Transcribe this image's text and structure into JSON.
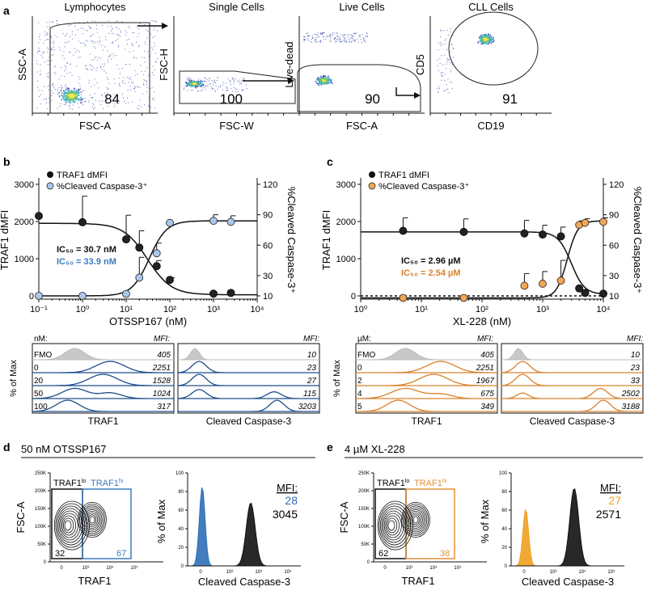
{
  "colors": {
    "blue": "#1f4e8c",
    "lightblue": "#a9c8ea",
    "bluetext": "#3b7bbf",
    "orange": "#d9822b",
    "lightorange": "#f2a555",
    "black": "#111111",
    "gray": "#bbbbbb"
  },
  "panel_a": {
    "letter": "a",
    "plots": [
      {
        "title": "Lymphocytes",
        "xlabel": "FSC-A",
        "ylabel": "SSC-A",
        "pct": "84"
      },
      {
        "title": "Single Cells",
        "xlabel": "FSC-W",
        "ylabel": "FSC-H",
        "pct": "100"
      },
      {
        "title": "Live Cells",
        "xlabel": "FSC-A",
        "ylabel": "Live-dead",
        "pct": "90"
      },
      {
        "title": "CLL Cells",
        "xlabel": "CD19",
        "ylabel": "CD5",
        "pct": "91"
      }
    ]
  },
  "chart_data": [
    {
      "panel": "b",
      "type": "line",
      "xlabel": "OTSSP167 (nM)",
      "ylabel": "TRAF1 dMFI",
      "y2label": "%Cleaved Caspase-3⁺",
      "xscale": "log",
      "xlim": [
        0.1,
        10000
      ],
      "ylim": [
        0,
        3000
      ],
      "y2lim": [
        0,
        120
      ],
      "xticks": [
        "10⁻¹",
        "10⁰",
        "10¹",
        "10²",
        "10³",
        "10⁴"
      ],
      "yticks": [
        "0",
        "1000",
        "2000",
        "3000"
      ],
      "y2ticks": [
        "10",
        "30",
        "60",
        "90",
        "120"
      ],
      "legend": [
        "TRAF1 dMFI",
        "%Cleaved Caspase-3⁺"
      ],
      "ic50": [
        {
          "label": "IC₅₀ = 30.7 nM"
        },
        {
          "label": "IC₅₀ = 33.9 nM"
        }
      ],
      "series": [
        {
          "name": "TRAF1 dMFI",
          "x": [
            0.1,
            1,
            10,
            20,
            50,
            100,
            1000,
            2500
          ],
          "y": [
            2150,
            1980,
            1520,
            1300,
            800,
            430,
            60,
            80
          ],
          "err": [
            0,
            700,
            650,
            450,
            150,
            60,
            0,
            0
          ]
        },
        {
          "name": "%Cleaved Caspase-3⁺",
          "x": [
            0.1,
            1,
            10,
            20,
            50,
            100,
            1000,
            2500
          ],
          "y": [
            10,
            10,
            12,
            28,
            52,
            82,
            84,
            83
          ],
          "err": [
            0,
            0,
            0,
            20,
            10,
            0,
            6,
            6
          ]
        }
      ]
    },
    {
      "panel": "c",
      "type": "line",
      "xlabel": "XL-228 (nM)",
      "ylabel": "TRAF1 dMFI",
      "y2label": "%Cleaved Caspase-3⁺",
      "xscale": "log",
      "xlim": [
        1,
        10000
      ],
      "ylim": [
        0,
        3000
      ],
      "y2lim": [
        0,
        120
      ],
      "xticks": [
        "10⁰",
        "10¹",
        "10²",
        "10³",
        "10⁴"
      ],
      "yticks": [
        "0",
        "1000",
        "2000",
        "3000"
      ],
      "y2ticks": [
        "10",
        "30",
        "60",
        "90",
        "120"
      ],
      "legend": [
        "TRAF1 dMFI",
        "%Cleaved Caspase-3⁺"
      ],
      "ic50": [
        {
          "label": "IC₅₀ = 2.96 µM"
        },
        {
          "label": "IC₅₀ = 2.54 µM"
        }
      ],
      "series": [
        {
          "name": "TRAF1 dMFI",
          "x": [
            5,
            50,
            500,
            1000,
            2000,
            4000,
            5000,
            10000
          ],
          "y": [
            1750,
            1720,
            1680,
            1650,
            1600,
            200,
            80,
            60
          ],
          "err": [
            350,
            350,
            350,
            250,
            250,
            0,
            0,
            0
          ]
        },
        {
          "name": "%Cleaved Caspase-3⁺",
          "x": [
            5,
            50,
            500,
            1000,
            2000,
            4000,
            5000,
            10000
          ],
          "y": [
            8,
            8,
            20,
            22,
            25,
            80,
            82,
            83
          ],
          "err": [
            0,
            0,
            12,
            12,
            20,
            4,
            4,
            4
          ]
        }
      ]
    }
  ],
  "hist_b": {
    "unit": "nM:",
    "mfi_head": "MFI:",
    "ylabel": "% of Max",
    "rows": [
      "FMO",
      "0",
      "20",
      "50",
      "100"
    ],
    "traf1_mfi": [
      "405",
      "2251",
      "1528",
      "1024",
      "317"
    ],
    "casp_mfi": [
      "10",
      "23",
      "27",
      "115",
      "3203"
    ],
    "xlabel1": "TRAF1",
    "xlabel2": "Cleaved Caspase-3"
  },
  "hist_c": {
    "unit": "µM:",
    "mfi_head": "MFI:",
    "ylabel": "% of Max",
    "rows": [
      "FMO",
      "0",
      "2",
      "4",
      "5"
    ],
    "traf1_mfi": [
      "405",
      "2251",
      "1967",
      "675",
      "349"
    ],
    "casp_mfi": [
      "10",
      "23",
      "33",
      "2502",
      "3188"
    ],
    "xlabel1": "TRAF1",
    "xlabel2": "Cleaved Caspase-3"
  },
  "panel_d": {
    "letter": "d",
    "title": "50 nM OTSSP167",
    "contour": {
      "ylabel": "FSC-A",
      "xlabel": "TRAF1",
      "lo": "TRAF1",
      "lo_sup": "lo",
      "hi": "TRAF1",
      "hi_sup": "hi",
      "pct_lo": "32",
      "pct_hi": "67",
      "yticks": [
        "250K",
        "200K",
        "150K",
        "100K",
        "50K",
        "0"
      ],
      "xticks": [
        "0",
        "10³",
        "10⁴",
        "10⁵"
      ]
    },
    "hist": {
      "ylabel": "% of Max",
      "xlabel": "Cleaved Caspase-3",
      "mfi_head": "MFI:",
      "mfi1": "28",
      "mfi2": "3045",
      "yticks": [
        "100",
        "80",
        "60",
        "40",
        "20",
        "0"
      ],
      "xticks": [
        "0",
        "10³",
        "10⁴",
        "10⁵"
      ]
    }
  },
  "panel_e": {
    "letter": "e",
    "title": "4 µM XL-228",
    "contour": {
      "ylabel": "FSC-A",
      "xlabel": "TRAF1",
      "lo": "TRAF1",
      "lo_sup": "lo",
      "hi": "TRAF1",
      "hi_sup": "hi",
      "pct_lo": "62",
      "pct_hi": "38",
      "yticks": [
        "250K",
        "200K",
        "150K",
        "100K",
        "50K",
        "0"
      ],
      "xticks": [
        "0",
        "10³",
        "10⁴",
        "10⁵"
      ]
    },
    "hist": {
      "ylabel": "% of Max",
      "xlabel": "Cleaved Caspase-3",
      "mfi_head": "MFI:",
      "mfi1": "27",
      "mfi2": "2571",
      "yticks": [
        "100",
        "80",
        "60",
        "40",
        "20",
        "0"
      ],
      "xticks": [
        "0",
        "10³",
        "10⁴",
        "10⁵"
      ]
    }
  }
}
